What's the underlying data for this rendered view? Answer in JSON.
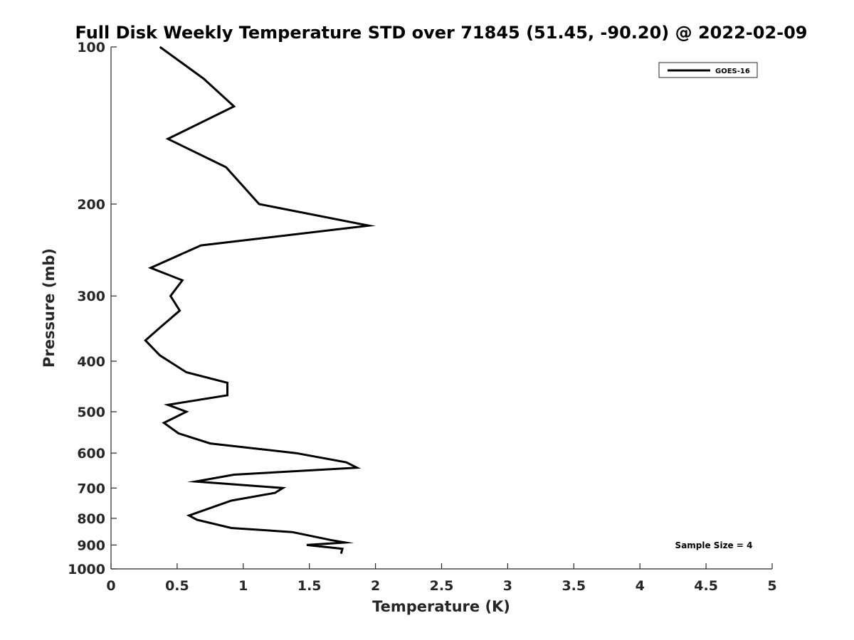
{
  "chart_data": {
    "type": "line",
    "title": "Full Disk Weekly Temperature STD over 71845 (51.45, -90.20) @ 2022-02-09",
    "xlabel": "Temperature (K)",
    "ylabel": "Pressure (mb)",
    "xlim": [
      0,
      5
    ],
    "ylim": [
      100,
      1000
    ],
    "y_scale": "log",
    "y_reversed": true,
    "grid": false,
    "xticks": [
      0,
      0.5,
      1,
      1.5,
      2,
      2.5,
      3,
      3.5,
      4,
      4.5,
      5
    ],
    "xtick_labels": [
      "0",
      "0.5",
      "1",
      "1.5",
      "2",
      "2.5",
      "3",
      "3.5",
      "4",
      "4.5",
      "5"
    ],
    "yticks": [
      100,
      200,
      300,
      400,
      500,
      600,
      700,
      800,
      900,
      1000
    ],
    "ytick_labels": [
      "100",
      "200",
      "300",
      "400",
      "500",
      "600",
      "700",
      "800",
      "900",
      "1000"
    ],
    "legend": {
      "placement": "top-right",
      "entries": [
        "GOES-16"
      ]
    },
    "annotation": "Sample Size = 4",
    "series": [
      {
        "name": "GOES-16",
        "color": "#000000",
        "points": [
          {
            "x": 0.37,
            "y": 100
          },
          {
            "x": 0.7,
            "y": 115
          },
          {
            "x": 0.93,
            "y": 130
          },
          {
            "x": 0.43,
            "y": 150
          },
          {
            "x": 0.87,
            "y": 170
          },
          {
            "x": 1.12,
            "y": 200
          },
          {
            "x": 1.95,
            "y": 220
          },
          {
            "x": 0.68,
            "y": 240
          },
          {
            "x": 0.3,
            "y": 265
          },
          {
            "x": 0.54,
            "y": 280
          },
          {
            "x": 0.45,
            "y": 300
          },
          {
            "x": 0.52,
            "y": 320
          },
          {
            "x": 0.37,
            "y": 345
          },
          {
            "x": 0.26,
            "y": 365
          },
          {
            "x": 0.37,
            "y": 390
          },
          {
            "x": 0.57,
            "y": 420
          },
          {
            "x": 0.88,
            "y": 440
          },
          {
            "x": 0.88,
            "y": 465
          },
          {
            "x": 0.43,
            "y": 485
          },
          {
            "x": 0.57,
            "y": 500
          },
          {
            "x": 0.4,
            "y": 525
          },
          {
            "x": 0.51,
            "y": 550
          },
          {
            "x": 0.75,
            "y": 575
          },
          {
            "x": 1.4,
            "y": 600
          },
          {
            "x": 1.78,
            "y": 625
          },
          {
            "x": 1.86,
            "y": 640
          },
          {
            "x": 0.93,
            "y": 660
          },
          {
            "x": 0.64,
            "y": 680
          },
          {
            "x": 1.3,
            "y": 700
          },
          {
            "x": 1.24,
            "y": 715
          },
          {
            "x": 0.91,
            "y": 740
          },
          {
            "x": 0.59,
            "y": 790
          },
          {
            "x": 0.65,
            "y": 805
          },
          {
            "x": 0.91,
            "y": 835
          },
          {
            "x": 1.37,
            "y": 850
          },
          {
            "x": 1.66,
            "y": 880
          },
          {
            "x": 1.77,
            "y": 890
          },
          {
            "x": 1.48,
            "y": 900
          },
          {
            "x": 1.75,
            "y": 915
          },
          {
            "x": 1.74,
            "y": 935
          }
        ]
      }
    ]
  }
}
